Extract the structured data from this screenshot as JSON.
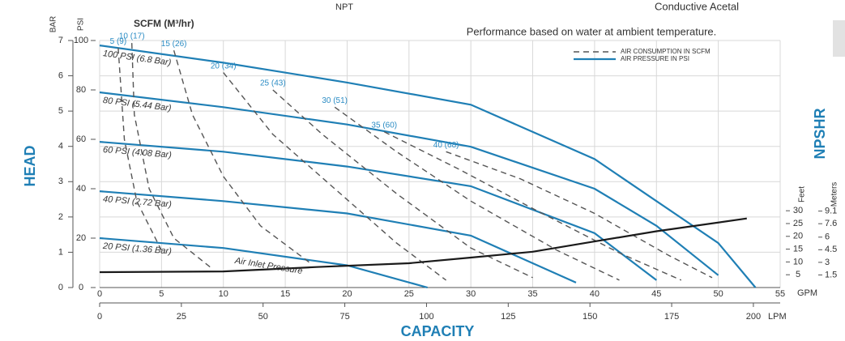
{
  "chart_data": {
    "type": "line",
    "top_labels": [
      "NPT",
      "Conductive Acetal"
    ],
    "title": "Performance based on water at ambient temperature.",
    "scfm_label": "SCFM (M³/hr)",
    "annotation": "Air Inlet Pressure",
    "x_label": "CAPACITY",
    "x_unit": "GPM",
    "xlim": [
      0,
      55
    ],
    "xticks": [
      0,
      5,
      10,
      15,
      20,
      25,
      30,
      35,
      40,
      45,
      50,
      55
    ],
    "x2_unit": "LPM",
    "x2lim": [
      0,
      208.2
    ],
    "x2ticks": [
      0,
      25,
      50,
      75,
      100,
      125,
      150,
      175,
      200
    ],
    "y_label": "HEAD",
    "y_unit": "PSI",
    "ylim": [
      0,
      100
    ],
    "yticks": [
      0,
      20,
      40,
      60,
      80,
      100
    ],
    "bar_unit": "BAR",
    "barlim": [
      0,
      7
    ],
    "barticks": [
      0,
      1,
      2,
      3,
      4,
      5,
      6,
      7
    ],
    "y2_label": "NPSHR",
    "y2_unit": "Feet",
    "y2lim": [
      0,
      96.5
    ],
    "y2ticks": [
      5,
      10,
      15,
      20,
      25,
      30
    ],
    "y3_unit": "Meters",
    "y3lim": [
      0,
      29.41
    ],
    "y3ticks": [
      1.5,
      3,
      4.5,
      6,
      7.6,
      9.1
    ],
    "grid": true,
    "legend": [
      {
        "name": "AIR CONSUMPTION IN SCFM",
        "color": "#555555",
        "dashed": true
      },
      {
        "name": "AIR PRESSURE IN PSI",
        "color": "#1f7fb5",
        "dashed": false
      }
    ],
    "series": [
      {
        "name": "100 PSI (6.8 Bar)",
        "group": "pressure",
        "color": "#1f7fb5",
        "x": [
          0,
          10,
          20,
          30,
          40,
          45,
          50,
          53
        ],
        "values": [
          98,
          91,
          83,
          74,
          52,
          35,
          18,
          0
        ]
      },
      {
        "name": "80 PSI (5.44 Bar)",
        "group": "pressure",
        "color": "#1f7fb5",
        "x": [
          0,
          10,
          20,
          30,
          40,
          45,
          50
        ],
        "values": [
          79,
          73,
          66,
          57,
          40,
          25,
          5
        ]
      },
      {
        "name": "60 PSI (4.08 Bar)",
        "group": "pressure",
        "color": "#1f7fb5",
        "x": [
          0,
          10,
          20,
          30,
          40,
          45
        ],
        "values": [
          59,
          55,
          49,
          41,
          22,
          3
        ]
      },
      {
        "name": "40 PSI (2.72 Bar)",
        "group": "pressure",
        "color": "#1f7fb5",
        "x": [
          0,
          10,
          20,
          30,
          38.5
        ],
        "values": [
          39,
          35,
          30,
          21,
          2
        ]
      },
      {
        "name": "20 PSI (1.36 Bar)",
        "group": "pressure",
        "color": "#1f7fb5",
        "x": [
          0,
          10,
          20,
          26.5
        ],
        "values": [
          20,
          16,
          9,
          0
        ]
      },
      {
        "name": "5 (9)",
        "group": "consumption",
        "color": "#555555",
        "x": [
          1.5,
          2,
          3,
          5
        ],
        "values": [
          97,
          60,
          35,
          15
        ]
      },
      {
        "name": "10 (17)",
        "group": "consumption",
        "color": "#555555",
        "x": [
          2.6,
          2.8,
          4,
          6,
          9
        ],
        "values": [
          99,
          70,
          40,
          20,
          8
        ]
      },
      {
        "name": "15 (26)",
        "group": "consumption",
        "color": "#555555",
        "x": [
          6,
          7.5,
          10,
          13,
          17
        ],
        "values": [
          96,
          70,
          45,
          25,
          10
        ]
      },
      {
        "name": "20 (34)",
        "group": "consumption",
        "color": "#555555",
        "x": [
          10,
          14,
          19,
          24,
          28
        ],
        "values": [
          87,
          62,
          40,
          18,
          3
        ]
      },
      {
        "name": "25 (43)",
        "group": "consumption",
        "color": "#555555",
        "x": [
          14,
          18,
          24,
          30,
          35
        ],
        "values": [
          80,
          62,
          38,
          16,
          4
        ]
      },
      {
        "name": "30 (51)",
        "group": "consumption",
        "color": "#555555",
        "x": [
          19,
          24,
          30,
          37,
          42
        ],
        "values": [
          73,
          55,
          35,
          15,
          3
        ]
      },
      {
        "name": "35 (60)",
        "group": "consumption",
        "color": "#555555",
        "x": [
          23,
          29,
          35,
          42,
          47
        ],
        "values": [
          63,
          48,
          32,
          14,
          3
        ]
      },
      {
        "name": "40 (68)",
        "group": "consumption",
        "color": "#555555",
        "x": [
          28,
          34,
          40,
          46,
          49.5
        ],
        "values": [
          55,
          44,
          30,
          13,
          4
        ]
      },
      {
        "group": "npshr",
        "axis": "y2",
        "color": "#1a1a1a",
        "x": [
          0,
          10,
          17.5,
          25,
          30,
          35,
          40,
          45,
          52.3
        ],
        "values": [
          6,
          6.3,
          8,
          9.5,
          11.7,
          14,
          18,
          22,
          27
        ]
      }
    ]
  }
}
